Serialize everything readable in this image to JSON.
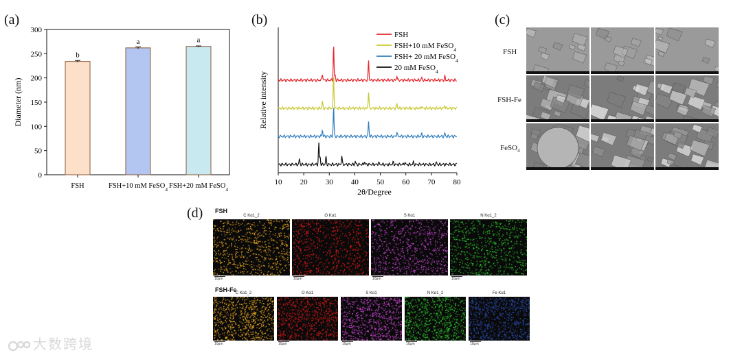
{
  "panels": {
    "a": "(a)",
    "b": "(b)",
    "c": "(c)",
    "d": "(d)"
  },
  "chart_data": [
    {
      "type": "bar",
      "categories": [
        "FSH",
        "FSH+10 mM FeSO4",
        "FSH+20 mM FeSO4"
      ],
      "values": [
        234,
        262,
        265
      ],
      "errors": [
        2,
        2,
        1
      ],
      "significance": [
        "b",
        "a",
        "a"
      ],
      "colors": [
        "#fce0c9",
        "#b3c6f1",
        "#c7e9ef"
      ],
      "ylabel": "Diameter (nm)",
      "xlabel": "",
      "ylim": [
        0,
        300
      ],
      "yticks": [
        0,
        50,
        100,
        150,
        200,
        250,
        300
      ]
    },
    {
      "type": "line",
      "xlabel": "2θ/Degree",
      "ylabel": "Relative intensity",
      "xlim": [
        10,
        80
      ],
      "xticks": [
        10,
        20,
        30,
        40,
        50,
        60,
        70,
        80
      ],
      "legend_position": "top-right",
      "series": [
        {
          "name": "FSH",
          "color": "#e8232a",
          "offset": 3,
          "peaks": [
            [
              27.3,
              0.9
            ],
            [
              31.7,
              4.6
            ],
            [
              32.3,
              0.6
            ],
            [
              45.4,
              2.6
            ],
            [
              56.5,
              0.6
            ],
            [
              66.2,
              0.35
            ],
            [
              75.3,
              0.45
            ]
          ]
        },
        {
          "name": "FSH+10 mM FeSO4",
          "color": "#c8c72f",
          "offset": 2,
          "peaks": [
            [
              27.3,
              0.9
            ],
            [
              31.7,
              4.4
            ],
            [
              45.4,
              2.2
            ],
            [
              56.5,
              0.6
            ],
            [
              66.2,
              0.3
            ],
            [
              75.3,
              0.4
            ]
          ]
        },
        {
          "name": "FSH+ 20 mM FeSO4",
          "color": "#2f7dbd",
          "offset": 1,
          "peaks": [
            [
              27.3,
              0.9
            ],
            [
              31.7,
              4.0
            ],
            [
              45.4,
              2.0
            ],
            [
              56.5,
              0.6
            ],
            [
              66.2,
              0.3
            ],
            [
              75.3,
              0.4
            ]
          ]
        },
        {
          "name": "20 mM FeSO4",
          "color": "#111111",
          "offset": 0,
          "peaks": [
            [
              18.3,
              0.7
            ],
            [
              25.9,
              2.8
            ],
            [
              26.4,
              1.0
            ],
            [
              28.7,
              1.0
            ],
            [
              34.9,
              1.2
            ],
            [
              40.2,
              0.4
            ],
            [
              43.8,
              0.4
            ],
            [
              49.3,
              0.3
            ],
            [
              55.1,
              0.3
            ],
            [
              59.6,
              0.35
            ],
            [
              63.0,
              0.3
            ],
            [
              72.0,
              0.25
            ]
          ]
        }
      ]
    }
  ],
  "sem": {
    "rows": [
      {
        "label": "FSH"
      },
      {
        "label": "FSH-Fe"
      },
      {
        "label": "FeSO4"
      }
    ]
  },
  "mapping": {
    "fsh": {
      "title": "FSH",
      "tiles": [
        {
          "element": "C Kα1_2",
          "color": "#e0a020"
        },
        {
          "element": "O Kα1",
          "color": "#d01818"
        },
        {
          "element": "S Kα1",
          "color": "#c040c8"
        },
        {
          "element": "N Kα1_2",
          "color": "#28b828"
        }
      ],
      "scale": "10μm"
    },
    "fshfe": {
      "title": "FSH-Fe",
      "tiles": [
        {
          "element": "C Kα1_2",
          "color": "#e0a020"
        },
        {
          "element": "O Kα1",
          "color": "#c01818"
        },
        {
          "element": "S Kα1",
          "color": "#c040c8"
        },
        {
          "element": "N Kα1_2",
          "color": "#28b828"
        },
        {
          "element": "Fe Kα1",
          "color": "#2848a8"
        }
      ],
      "scale": "10μm"
    }
  },
  "watermark": "大数跨境"
}
